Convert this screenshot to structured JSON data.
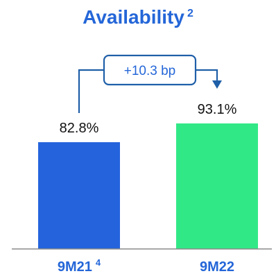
{
  "chart_data": {
    "type": "bar",
    "title": "Availability",
    "title_superscript": "2",
    "categories": [
      {
        "label": "9M21",
        "superscript": "4"
      },
      {
        "label": "9M22",
        "superscript": ""
      }
    ],
    "values": [
      82.8,
      93.1
    ],
    "value_labels": [
      "82.8%",
      "93.1%"
    ],
    "bar_colors": [
      "#2463dc",
      "#31e887"
    ],
    "annotation": "+10.3 bp",
    "xlabel": "",
    "ylabel": "",
    "grid": false,
    "legend": "none"
  },
  "colors": {
    "accent": "#2466d8",
    "bar_1": "#2463dc",
    "bar_2": "#31e887",
    "annotation": "#1f5fa8",
    "baseline": "#8a8a8a"
  }
}
